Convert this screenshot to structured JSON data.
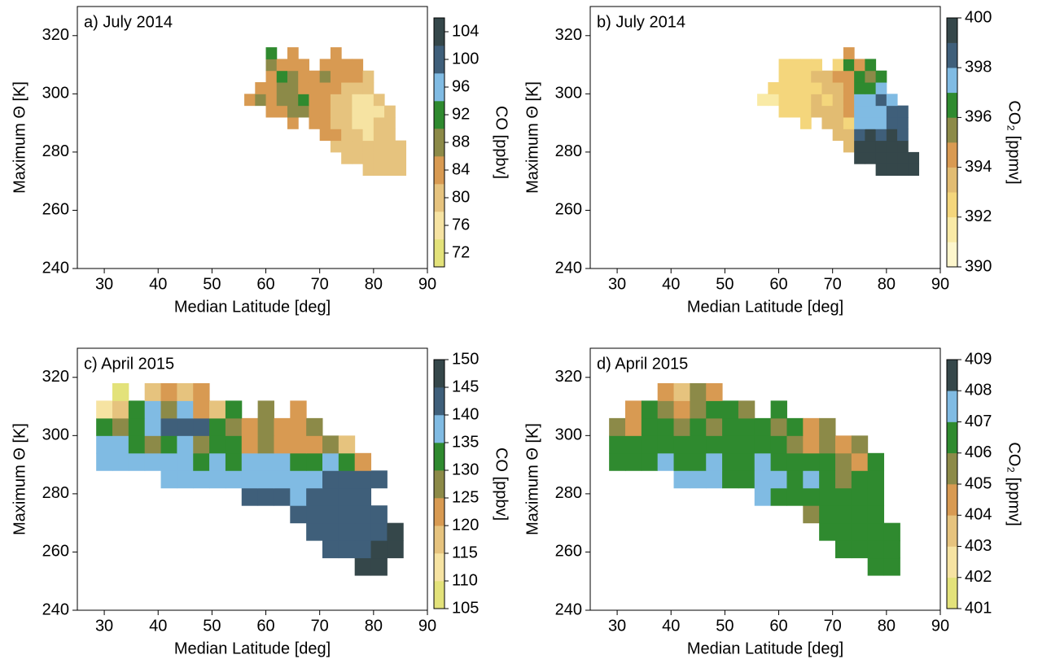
{
  "chart_data": [
    {
      "type": "heatmap",
      "title": "a) July 2014",
      "x_label": "Median Latitude [deg]",
      "y_label": "Maximum Θ [K]",
      "colorbar_label": "CO [ppbv]",
      "xlim": [
        25,
        90
      ],
      "ylim": [
        240,
        330
      ],
      "xticks": [
        30,
        40,
        50,
        60,
        70,
        80,
        90
      ],
      "yticks": [
        240,
        260,
        280,
        300,
        320
      ],
      "clim": [
        70,
        106
      ],
      "cticks": [
        72,
        76,
        80,
        84,
        88,
        92,
        96,
        100,
        104
      ],
      "colors": [
        "#e3e27a",
        "#f6e3a2",
        "#e6c37e",
        "#d89a52",
        "#8c8a48",
        "#2f8a2f",
        "#80bbe3",
        "#3f5f7a",
        "#35474a"
      ],
      "x": [
        57,
        59,
        61,
        63,
        65,
        67,
        69,
        71,
        73,
        75,
        77,
        79,
        81,
        83,
        85
      ],
      "y": [
        274,
        278,
        282,
        286,
        290,
        294,
        298,
        302,
        306,
        310,
        314
      ],
      "z": [
        [
          null,
          null,
          null,
          null,
          null,
          null,
          null,
          null,
          null,
          null,
          null,
          80,
          80,
          80,
          80
        ],
        [
          null,
          null,
          null,
          null,
          null,
          null,
          null,
          null,
          null,
          80,
          80,
          80,
          78,
          78,
          80
        ],
        [
          null,
          null,
          null,
          null,
          null,
          null,
          null,
          null,
          80,
          80,
          78,
          78,
          78,
          78,
          80
        ],
        [
          null,
          null,
          null,
          null,
          null,
          null,
          null,
          84,
          84,
          80,
          78,
          76,
          78,
          78,
          null
        ],
        [
          null,
          null,
          null,
          null,
          84,
          null,
          84,
          84,
          80,
          78,
          76,
          76,
          78,
          78,
          null
        ],
        [
          null,
          null,
          84,
          84,
          88,
          88,
          84,
          84,
          80,
          78,
          76,
          76,
          76,
          78,
          null
        ],
        [
          84,
          86,
          84,
          88,
          88,
          90,
          84,
          84,
          80,
          78,
          76,
          76,
          78,
          null,
          null
        ],
        [
          null,
          84,
          84,
          86,
          88,
          84,
          84,
          84,
          82,
          80,
          78,
          78,
          null,
          null,
          null
        ],
        [
          null,
          null,
          84,
          92,
          86,
          84,
          84,
          86,
          84,
          84,
          84,
          80,
          null,
          null,
          null
        ],
        [
          null,
          null,
          88,
          84,
          84,
          84,
          null,
          84,
          84,
          84,
          84,
          null,
          null,
          null,
          null
        ],
        [
          null,
          null,
          92,
          null,
          84,
          null,
          null,
          null,
          84,
          null,
          null,
          null,
          null,
          null,
          null
        ]
      ]
    },
    {
      "type": "heatmap",
      "title": "b) July 2014",
      "x_label": "Median Latitude [deg]",
      "y_label": "Maximum Θ [K]",
      "colorbar_label": "CO₂ [ppmv]",
      "xlim": [
        25,
        90
      ],
      "ylim": [
        240,
        330
      ],
      "xticks": [
        30,
        40,
        50,
        60,
        70,
        80,
        90
      ],
      "yticks": [
        240,
        260,
        280,
        300,
        320
      ],
      "clim": [
        390,
        400
      ],
      "cticks": [
        390,
        392,
        394,
        396,
        398,
        400
      ],
      "colors": [
        "#fdf6cc",
        "#f9eaa6",
        "#f4d67c",
        "#e2bc72",
        "#d99a52",
        "#8c8a48",
        "#2f8a2f",
        "#80bbe3",
        "#3f5f7a",
        "#35474a"
      ],
      "x": [
        57,
        59,
        61,
        63,
        65,
        67,
        69,
        71,
        73,
        75,
        77,
        79,
        81,
        83,
        85
      ],
      "y": [
        274,
        278,
        282,
        286,
        290,
        294,
        298,
        302,
        306,
        310,
        314
      ],
      "z": [
        [
          null,
          null,
          null,
          null,
          null,
          null,
          null,
          null,
          null,
          null,
          null,
          399.5,
          399.5,
          399.5,
          399.5
        ],
        [
          null,
          null,
          null,
          null,
          null,
          null,
          null,
          null,
          null,
          399,
          399,
          399.5,
          399,
          399,
          399
        ],
        [
          null,
          null,
          null,
          null,
          null,
          null,
          null,
          null,
          393,
          399,
          399,
          399,
          399,
          399,
          null
        ],
        [
          null,
          null,
          null,
          null,
          null,
          null,
          null,
          393,
          393,
          398,
          399,
          398,
          399,
          398,
          null
        ],
        [
          null,
          null,
          null,
          null,
          392,
          null,
          393,
          393,
          392,
          397.5,
          397.5,
          397.5,
          398,
          398,
          null
        ],
        [
          null,
          null,
          392,
          392,
          392,
          393,
          393,
          393,
          394,
          397.5,
          397.5,
          397.5,
          398,
          398,
          null
        ],
        [
          391,
          391,
          392,
          392,
          392,
          393,
          392,
          393,
          394,
          397.5,
          397.5,
          398,
          397.5,
          null,
          null
        ],
        [
          null,
          392,
          392,
          392,
          392,
          392,
          393,
          393,
          394,
          396,
          396,
          397.5,
          null,
          null,
          null
        ],
        [
          null,
          null,
          392,
          392,
          392,
          393,
          393,
          394,
          394,
          396,
          395,
          396,
          null,
          null,
          null
        ],
        [
          null,
          null,
          392,
          392,
          392,
          392,
          null,
          392,
          396,
          394,
          396,
          null,
          null,
          null,
          null
        ],
        [
          null,
          null,
          null,
          null,
          null,
          null,
          null,
          null,
          394,
          null,
          null,
          null,
          null,
          null,
          null
        ]
      ]
    },
    {
      "type": "heatmap",
      "title": "c) April 2015",
      "x_label": "Median Latitude [deg]",
      "y_label": "Maximum Θ [K]",
      "colorbar_label": "CO [ppbv]",
      "xlim": [
        25,
        90
      ],
      "ylim": [
        240,
        330
      ],
      "xticks": [
        30,
        40,
        50,
        60,
        70,
        80,
        90
      ],
      "yticks": [
        240,
        260,
        280,
        300,
        320
      ],
      "clim": [
        105,
        150
      ],
      "cticks": [
        105,
        110,
        115,
        120,
        125,
        130,
        135,
        140,
        145,
        150
      ],
      "colors": [
        "#e3e27a",
        "#f6e3a2",
        "#e6c37e",
        "#d89a52",
        "#8c8a48",
        "#2f8a2f",
        "#80bbe3",
        "#3f5f7a",
        "#35474a"
      ],
      "x": [
        30,
        33,
        36,
        39,
        42,
        45,
        48,
        51,
        54,
        57,
        60,
        63,
        66,
        69,
        72,
        75,
        78,
        81,
        84
      ],
      "y": [
        255,
        261,
        267,
        273,
        279,
        285,
        291,
        297,
        303,
        309,
        315
      ],
      "z": [
        [
          null,
          null,
          null,
          null,
          null,
          null,
          null,
          null,
          null,
          null,
          null,
          null,
          null,
          null,
          null,
          null,
          147,
          147,
          null
        ],
        [
          null,
          null,
          null,
          null,
          null,
          null,
          null,
          null,
          null,
          null,
          null,
          null,
          null,
          null,
          143,
          143,
          143,
          147,
          147
        ],
        [
          null,
          null,
          null,
          null,
          null,
          null,
          null,
          null,
          null,
          null,
          null,
          null,
          null,
          143,
          143,
          143,
          143,
          143,
          147
        ],
        [
          null,
          null,
          null,
          null,
          null,
          null,
          null,
          null,
          null,
          null,
          null,
          null,
          143,
          143,
          143,
          143,
          143,
          143,
          null
        ],
        [
          null,
          null,
          null,
          null,
          null,
          null,
          null,
          null,
          null,
          143,
          143,
          143,
          138,
          143,
          143,
          143,
          143,
          null,
          null
        ],
        [
          null,
          null,
          null,
          null,
          138,
          138,
          138,
          138,
          138,
          138,
          138,
          138,
          138,
          138,
          143,
          143,
          143,
          143,
          null
        ],
        [
          138,
          138,
          138,
          138,
          138,
          138,
          132,
          138,
          132,
          138,
          138,
          138,
          132,
          132,
          138,
          132,
          122,
          null,
          null
        ],
        [
          138,
          138,
          132,
          128,
          132,
          138,
          128,
          132,
          132,
          122,
          128,
          122,
          122,
          122,
          128,
          118,
          null,
          null,
          null
        ],
        [
          132,
          128,
          132,
          138,
          143,
          143,
          143,
          132,
          128,
          122,
          128,
          122,
          122,
          128,
          null,
          null,
          null,
          null,
          null
        ],
        [
          112,
          118,
          132,
          138,
          128,
          138,
          122,
          118,
          132,
          null,
          128,
          null,
          122,
          null,
          null,
          null,
          null,
          null,
          null
        ],
        [
          null,
          108,
          null,
          118,
          122,
          118,
          122,
          null,
          null,
          null,
          null,
          null,
          null,
          null,
          null,
          null,
          null,
          null,
          null
        ]
      ]
    },
    {
      "type": "heatmap",
      "title": "d) April 2015",
      "x_label": "Median Latitude [deg]",
      "y_label": "Maximum Θ [K]",
      "colorbar_label": "CO₂ [ppmv]",
      "xlim": [
        25,
        90
      ],
      "ylim": [
        240,
        330
      ],
      "xticks": [
        30,
        40,
        50,
        60,
        70,
        80,
        90
      ],
      "yticks": [
        240,
        260,
        280,
        300,
        320
      ],
      "clim": [
        401,
        409
      ],
      "cticks": [
        401,
        402,
        403,
        404,
        405,
        406,
        407,
        408,
        409
      ],
      "colors": [
        "#e3e27a",
        "#f6e3a2",
        "#e6c37e",
        "#d89a52",
        "#8c8a48",
        "#2f8a2f",
        "#80bbe3",
        "#35474a"
      ],
      "x": [
        30,
        33,
        36,
        39,
        42,
        45,
        48,
        51,
        54,
        57,
        60,
        63,
        66,
        69,
        72,
        75,
        78,
        81,
        84
      ],
      "y": [
        255,
        261,
        267,
        273,
        279,
        285,
        291,
        297,
        303,
        309,
        315
      ],
      "z": [
        [
          null,
          null,
          null,
          null,
          null,
          null,
          null,
          null,
          null,
          null,
          null,
          null,
          null,
          null,
          null,
          null,
          406,
          406,
          null
        ],
        [
          null,
          null,
          null,
          null,
          null,
          null,
          null,
          null,
          null,
          null,
          null,
          null,
          null,
          null,
          406,
          406,
          406,
          406,
          null
        ],
        [
          null,
          null,
          null,
          null,
          null,
          null,
          null,
          null,
          null,
          null,
          null,
          null,
          null,
          406,
          406,
          406,
          406,
          406,
          null
        ],
        [
          null,
          null,
          null,
          null,
          null,
          null,
          null,
          null,
          null,
          null,
          null,
          null,
          405,
          406,
          406,
          406,
          406,
          null,
          null
        ],
        [
          null,
          null,
          null,
          null,
          null,
          null,
          null,
          null,
          null,
          407,
          406,
          406,
          406,
          406,
          406,
          406,
          406,
          null,
          null
        ],
        [
          null,
          null,
          null,
          null,
          407,
          407,
          407,
          406,
          406,
          407,
          407,
          406,
          407,
          406,
          405,
          406,
          406,
          null,
          null
        ],
        [
          406,
          406,
          406,
          407,
          406,
          406,
          407,
          406,
          406,
          407,
          406,
          406,
          406,
          406,
          405,
          404,
          406,
          null,
          null
        ],
        [
          406,
          406,
          406,
          406,
          406,
          406,
          406,
          406,
          406,
          406,
          406,
          405,
          404,
          405,
          404,
          405,
          null,
          null,
          null
        ],
        [
          405,
          404,
          406,
          406,
          405,
          406,
          405,
          406,
          406,
          406,
          405,
          406,
          404,
          405,
          null,
          null,
          null,
          null,
          null
        ],
        [
          null,
          404,
          406,
          405,
          404,
          405,
          406,
          406,
          405,
          null,
          406,
          null,
          null,
          null,
          null,
          null,
          null,
          null,
          null
        ],
        [
          null,
          null,
          null,
          404,
          403,
          405,
          404,
          null,
          null,
          null,
          null,
          null,
          null,
          null,
          null,
          null,
          null,
          null,
          null
        ]
      ]
    }
  ]
}
